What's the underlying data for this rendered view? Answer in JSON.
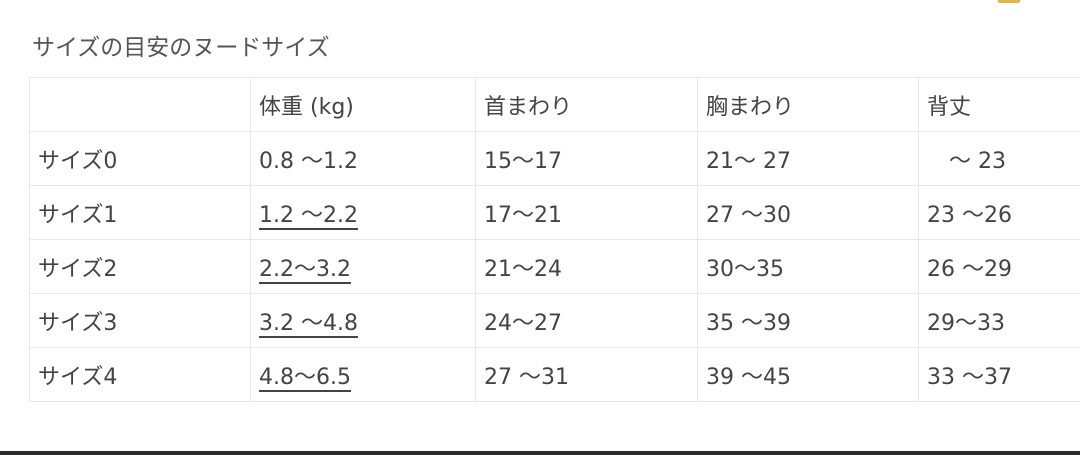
{
  "title": "サイズの目安のヌードサイズ",
  "colors": {
    "accent": "#e0b54a",
    "text": "#444444",
    "border": "#e8e8e8"
  },
  "table": {
    "headers": [
      "",
      "体重 (kg)",
      "首まわり",
      "胸まわり",
      "背丈"
    ],
    "rows": [
      {
        "size": "サイズ0",
        "weight": "0.8 〜1.2",
        "neck": "15〜17",
        "chest": "21〜 27",
        "length": "　〜 23",
        "weight_link": false
      },
      {
        "size": "サイズ1",
        "weight": "1.2 〜2.2",
        "neck": "17〜21",
        "chest": "27 〜30",
        "length": "23 〜26",
        "weight_link": true
      },
      {
        "size": "サイズ2",
        "weight": "2.2〜3.2",
        "neck": "21〜24",
        "chest": "30〜35",
        "length": "26 〜29",
        "weight_link": true
      },
      {
        "size": "サイズ3",
        "weight": "3.2 〜4.8",
        "neck": "24〜27",
        "chest": "35 〜39",
        "length": "29〜33",
        "weight_link": true
      },
      {
        "size": "サイズ4",
        "weight": "4.8〜6.5",
        "neck": "27 〜31",
        "chest": "39 〜45",
        "length": "33 〜37",
        "weight_link": true
      }
    ]
  }
}
